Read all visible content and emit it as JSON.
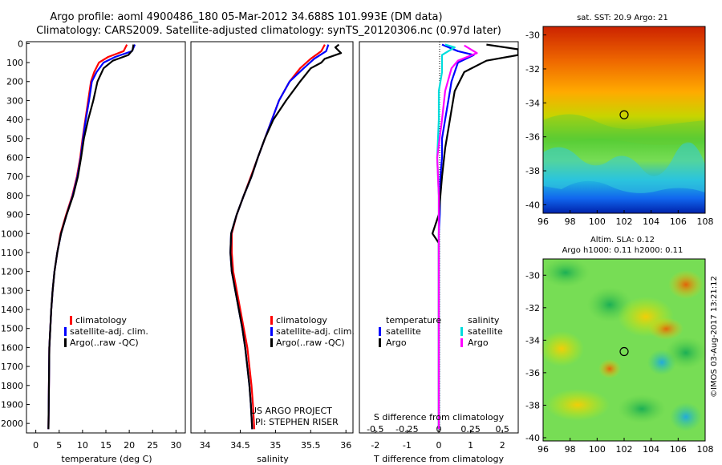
{
  "header": {
    "title_line1": "Argo profile: aoml 4900486_180 05-Mar-2012 34.688S 101.993E (DM data)",
    "title_line2": "Climatology: CARS2009. Satellite-adjusted climatology: synTS_20120306.nc (0.97d later)"
  },
  "depth_ticks": [
    "0",
    "100",
    "200",
    "300",
    "400",
    "500",
    "600",
    "700",
    "800",
    "900",
    "1000",
    "1100",
    "1200",
    "1300",
    "1400",
    "1500",
    "1600",
    "1700",
    "1800",
    "1900",
    "2000"
  ],
  "chart_data": [
    {
      "id": "temperature",
      "type": "line",
      "xlabel": "temperature (deg C)",
      "xlim": [
        -2,
        32
      ],
      "ylim": [
        2050,
        -10
      ],
      "xticks": [
        0,
        5,
        10,
        15,
        20,
        25,
        30
      ],
      "legend": {
        "position": "lower-center",
        "entries": [
          "climatology",
          "satellite-adj. clim.",
          "Argo(..raw -QC)"
        ]
      },
      "series": [
        {
          "name": "climatology",
          "color": "#ff0000",
          "points": [
            [
              19.5,
              5
            ],
            [
              18.8,
              40
            ],
            [
              15.5,
              70
            ],
            [
              13.5,
              100
            ],
            [
              12.5,
              150
            ],
            [
              11.8,
              200
            ],
            [
              11.2,
              300
            ],
            [
              10.6,
              400
            ],
            [
              10.0,
              500
            ],
            [
              9.5,
              600
            ],
            [
              8.8,
              700
            ],
            [
              7.8,
              800
            ],
            [
              6.5,
              900
            ],
            [
              5.3,
              1000
            ],
            [
              4.6,
              1100
            ],
            [
              4.0,
              1200
            ],
            [
              3.6,
              1300
            ],
            [
              3.3,
              1400
            ],
            [
              3.1,
              1500
            ],
            [
              2.9,
              1600
            ],
            [
              2.8,
              1800
            ],
            [
              2.7,
              2030
            ]
          ]
        },
        {
          "name": "satellite-adj. clim.",
          "color": "#0000ff",
          "points": [
            [
              21.2,
              5
            ],
            [
              20.6,
              40
            ],
            [
              17.0,
              70
            ],
            [
              14.5,
              100
            ],
            [
              13.0,
              150
            ],
            [
              12.0,
              200
            ],
            [
              11.4,
              300
            ],
            [
              10.7,
              400
            ],
            [
              10.1,
              500
            ],
            [
              9.6,
              600
            ],
            [
              8.9,
              700
            ],
            [
              7.9,
              800
            ],
            [
              6.6,
              900
            ],
            [
              5.4,
              1000
            ],
            [
              4.6,
              1100
            ],
            [
              4.0,
              1200
            ],
            [
              3.6,
              1300
            ],
            [
              3.3,
              1400
            ],
            [
              3.1,
              1500
            ],
            [
              2.9,
              1600
            ],
            [
              2.8,
              1800
            ],
            [
              2.7,
              2030
            ]
          ]
        },
        {
          "name": "Argo(..raw -QC)",
          "color": "#000000",
          "points": [
            [
              20.9,
              5
            ],
            [
              20.7,
              35
            ],
            [
              19.8,
              60
            ],
            [
              16.5,
              90
            ],
            [
              14.5,
              130
            ],
            [
              13.2,
              200
            ],
            [
              12.3,
              300
            ],
            [
              11.2,
              400
            ],
            [
              10.3,
              500
            ],
            [
              9.7,
              600
            ],
            [
              9.0,
              700
            ],
            [
              8.0,
              800
            ],
            [
              6.6,
              900
            ],
            [
              5.4,
              1000
            ],
            [
              4.6,
              1100
            ],
            [
              4.0,
              1200
            ],
            [
              3.6,
              1300
            ],
            [
              3.3,
              1400
            ],
            [
              3.1,
              1500
            ],
            [
              2.9,
              1600
            ],
            [
              2.8,
              1800
            ],
            [
              2.7,
              2030
            ]
          ]
        }
      ]
    },
    {
      "id": "salinity",
      "type": "line",
      "xlabel": "salinity",
      "xlim": [
        33.8,
        36.1
      ],
      "ylim": [
        2050,
        -10
      ],
      "xticks": [
        34,
        34.5,
        35,
        35.5,
        36
      ],
      "legend": {
        "position": "lower-right",
        "entries": [
          "climatology",
          "satellite-adj. clim.",
          "Argo(..raw -QC)"
        ]
      },
      "annotations": [
        "US ARGO PROJECT",
        "PI: STEPHEN RISER"
      ],
      "series": [
        {
          "name": "climatology",
          "color": "#ff0000",
          "points": [
            [
              35.7,
              5
            ],
            [
              35.65,
              40
            ],
            [
              35.5,
              80
            ],
            [
              35.35,
              130
            ],
            [
              35.2,
              200
            ],
            [
              35.05,
              300
            ],
            [
              34.95,
              400
            ],
            [
              34.85,
              500
            ],
            [
              34.75,
              600
            ],
            [
              34.65,
              700
            ],
            [
              34.55,
              800
            ],
            [
              34.45,
              900
            ],
            [
              34.38,
              1000
            ],
            [
              34.38,
              1100
            ],
            [
              34.4,
              1200
            ],
            [
              34.45,
              1300
            ],
            [
              34.5,
              1400
            ],
            [
              34.55,
              1500
            ],
            [
              34.6,
              1600
            ],
            [
              34.63,
              1700
            ],
            [
              34.66,
              1800
            ],
            [
              34.68,
              1900
            ],
            [
              34.7,
              2030
            ]
          ]
        },
        {
          "name": "satellite-adj. clim.",
          "color": "#0000ff",
          "points": [
            [
              35.75,
              5
            ],
            [
              35.72,
              40
            ],
            [
              35.55,
              80
            ],
            [
              35.4,
              130
            ],
            [
              35.2,
              200
            ],
            [
              35.05,
              300
            ],
            [
              34.95,
              400
            ],
            [
              34.85,
              500
            ],
            [
              34.75,
              600
            ],
            [
              34.66,
              700
            ],
            [
              34.55,
              800
            ],
            [
              34.45,
              900
            ],
            [
              34.37,
              1000
            ],
            [
              34.36,
              1100
            ],
            [
              34.38,
              1200
            ],
            [
              34.43,
              1300
            ],
            [
              34.48,
              1400
            ],
            [
              34.53,
              1500
            ],
            [
              34.57,
              1600
            ],
            [
              34.6,
              1700
            ],
            [
              34.63,
              1800
            ],
            [
              34.65,
              1900
            ],
            [
              34.67,
              2030
            ]
          ]
        },
        {
          "name": "Argo(..raw -QC)",
          "color": "#000000",
          "points": [
            [
              35.9,
              5
            ],
            [
              35.85,
              20
            ],
            [
              35.93,
              50
            ],
            [
              35.7,
              80
            ],
            [
              35.65,
              100
            ],
            [
              35.5,
              130
            ],
            [
              35.35,
              200
            ],
            [
              35.15,
              300
            ],
            [
              34.97,
              400
            ],
            [
              34.85,
              500
            ],
            [
              34.75,
              600
            ],
            [
              34.66,
              700
            ],
            [
              34.55,
              800
            ],
            [
              34.45,
              900
            ],
            [
              34.37,
              1000
            ],
            [
              34.36,
              1100
            ],
            [
              34.38,
              1200
            ],
            [
              34.43,
              1300
            ],
            [
              34.48,
              1400
            ],
            [
              34.53,
              1500
            ],
            [
              34.57,
              1600
            ],
            [
              34.6,
              1700
            ],
            [
              34.63,
              1800
            ],
            [
              34.65,
              1900
            ],
            [
              34.67,
              2030
            ]
          ]
        }
      ]
    },
    {
      "id": "difference",
      "type": "line",
      "xlabel": "T difference from climatology",
      "xlabel_top": "S difference from climatology",
      "xlim": [
        -2.5,
        2.5
      ],
      "ylim": [
        2050,
        -10
      ],
      "xticks": [
        "-2",
        "-1",
        "0",
        "1",
        "2"
      ],
      "xticks_top": [
        "-0.5",
        "-0.25",
        "0",
        "0.25",
        "0.5"
      ],
      "legend": {
        "position": "lower-center",
        "headers": [
          "temperature",
          "salinity"
        ],
        "entries": [
          "satellite",
          "Argo",
          "satellite",
          "Argo"
        ]
      },
      "series": [
        {
          "name": "temperature satellite",
          "color": "#0000ff",
          "points": [
            [
              0.1,
              5
            ],
            [
              0.6,
              40
            ],
            [
              1.1,
              60
            ],
            [
              0.6,
              100
            ],
            [
              0.4,
              200
            ],
            [
              0.3,
              300
            ],
            [
              0.2,
              400
            ],
            [
              0.1,
              500
            ],
            [
              0.1,
              600
            ],
            [
              0.05,
              700
            ],
            [
              0.03,
              900
            ],
            [
              0,
              1000
            ],
            [
              0,
              1200
            ],
            [
              0,
              2030
            ]
          ]
        },
        {
          "name": "temperature Argo",
          "color": "#000000",
          "points": [
            [
              1.5,
              5
            ],
            [
              2.5,
              30
            ],
            [
              2.5,
              60
            ],
            [
              1.5,
              90
            ],
            [
              0.8,
              150
            ],
            [
              0.5,
              250
            ],
            [
              0.4,
              350
            ],
            [
              0.3,
              450
            ],
            [
              0.2,
              550
            ],
            [
              0.1,
              700
            ],
            [
              0,
              900
            ],
            [
              -0.2,
              1000
            ],
            [
              0,
              1050
            ],
            [
              0,
              2030
            ]
          ]
        },
        {
          "name": "salinity satellite",
          "color": "#00dddd",
          "points": [
            [
              0.2,
              5
            ],
            [
              0.5,
              20
            ],
            [
              0.1,
              60
            ],
            [
              0.1,
              150
            ],
            [
              0,
              250
            ],
            [
              0,
              400
            ],
            [
              -0.05,
              600
            ],
            [
              0,
              800
            ],
            [
              0,
              1000
            ],
            [
              0,
              2030
            ]
          ]
        },
        {
          "name": "salinity Argo",
          "color": "#ff00ff",
          "points": [
            [
              0.8,
              10
            ],
            [
              1.2,
              50
            ],
            [
              0.6,
              90
            ],
            [
              0.4,
              130
            ],
            [
              0.2,
              250
            ],
            [
              0.1,
              400
            ],
            [
              -0.05,
              600
            ],
            [
              0,
              800
            ],
            [
              0,
              1000
            ],
            [
              0,
              2030
            ]
          ]
        }
      ]
    }
  ],
  "maps": [
    {
      "id": "sst-map",
      "title": "sat. SST: 20.9 Argo: 21",
      "xticks": [
        "96",
        "98",
        "100",
        "102",
        "104",
        "106",
        "108"
      ],
      "yticks": [
        "-30",
        "-32",
        "-34",
        "-36",
        "-38",
        "-40"
      ],
      "marker": {
        "lon": 102,
        "lat": -34.7
      }
    },
    {
      "id": "sla-map",
      "title_line1": "Altim. SLA: 0.12",
      "title_line2": "Argo h1000: 0.11 h2000: 0.11",
      "xticks": [
        "96",
        "98",
        "100",
        "102",
        "104",
        "106",
        "108"
      ],
      "yticks": [
        "-30",
        "-32",
        "-34",
        "-36",
        "-38",
        "-40"
      ],
      "marker": {
        "lon": 102,
        "lat": -34.7
      }
    }
  ],
  "footer": {
    "credit": "©IMOS 03-Aug-2017 13:21:12"
  }
}
